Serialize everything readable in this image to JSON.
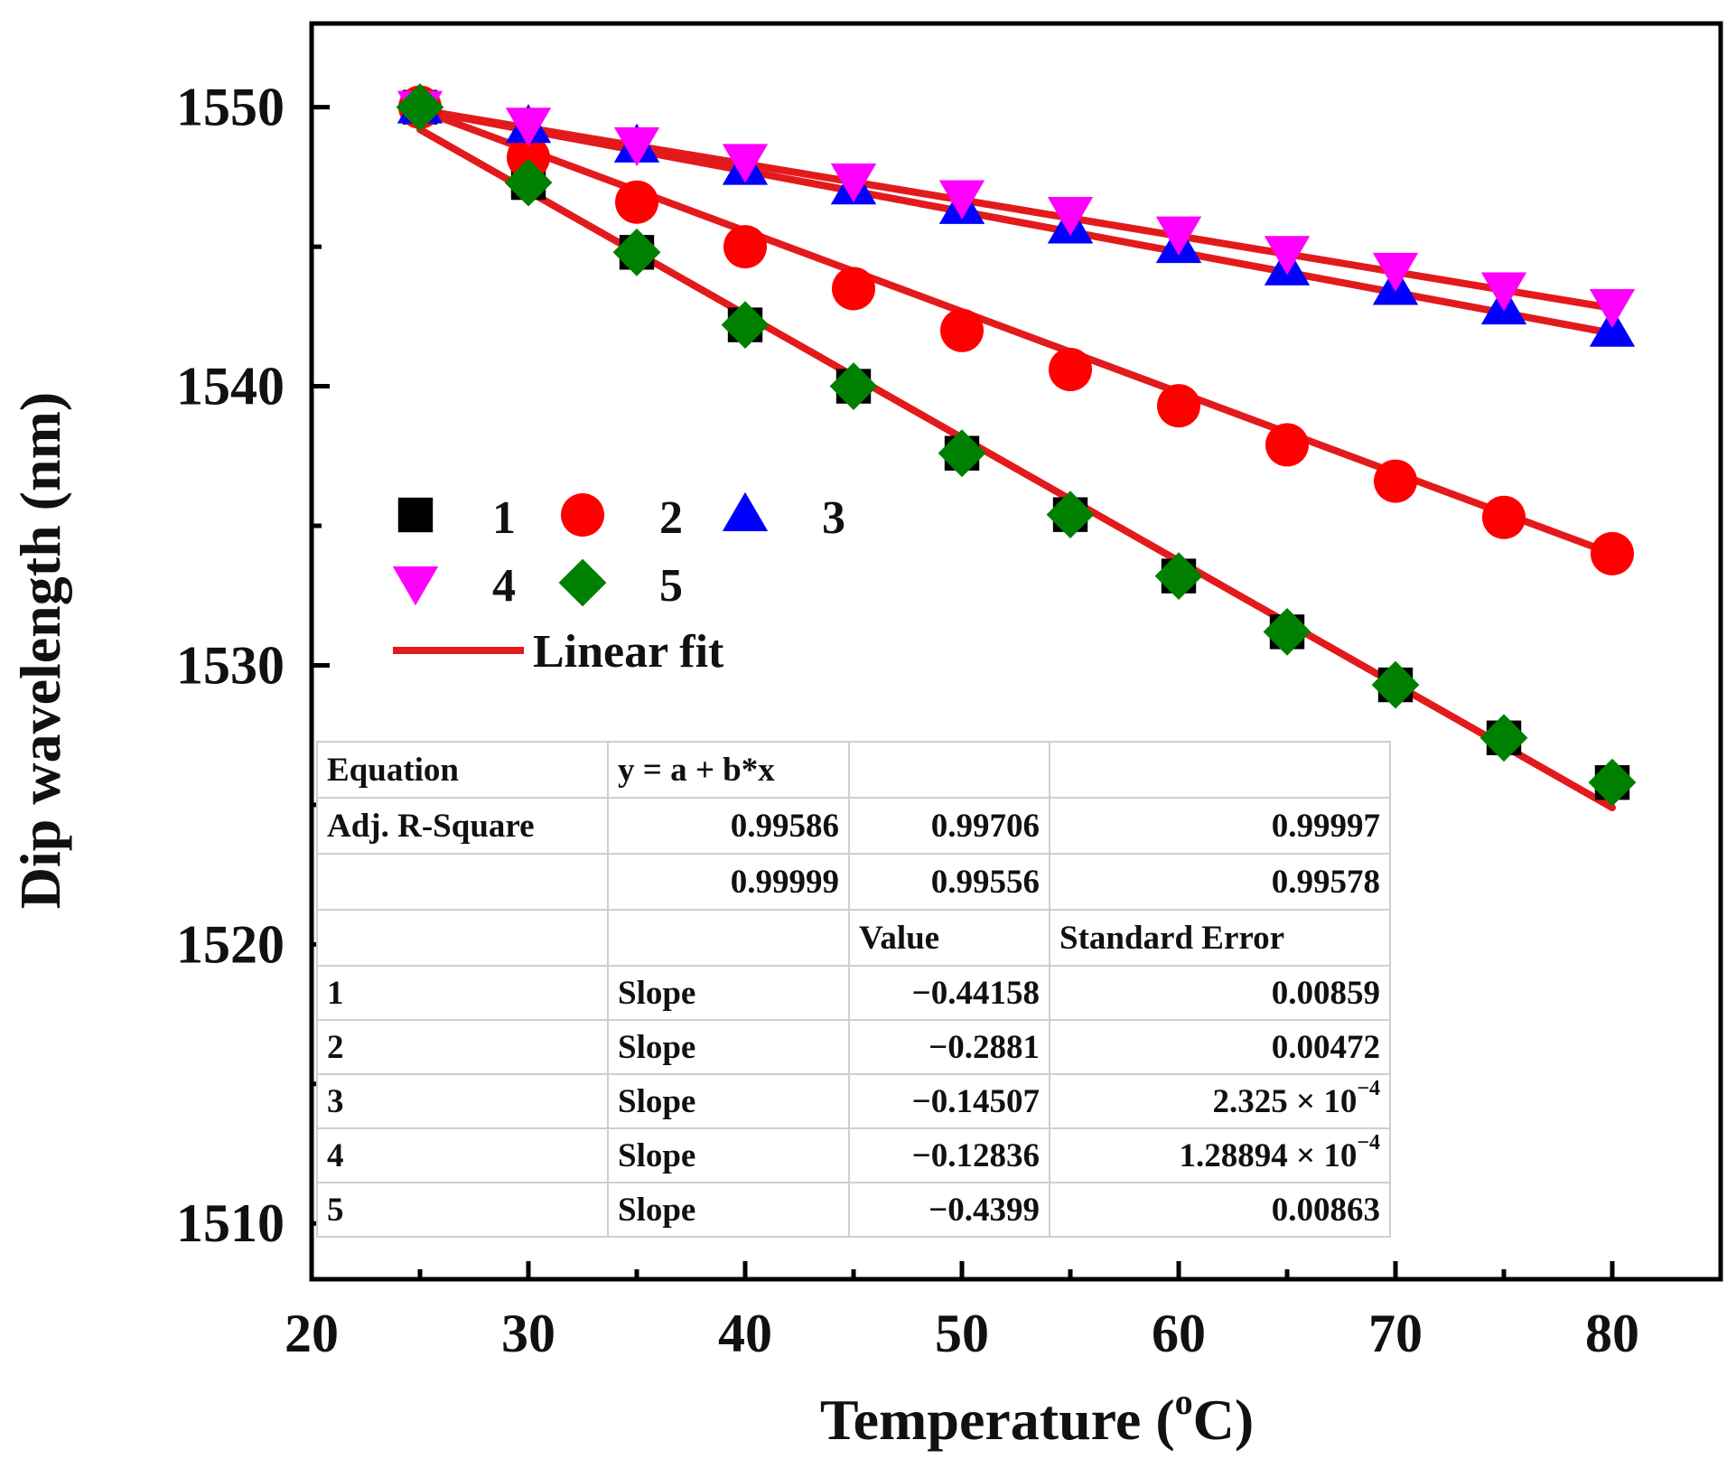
{
  "chart_data": {
    "type": "scatter",
    "xlabel": "Temperature (°C)",
    "xlabel_parts": {
      "prefix": "Temperature (",
      "degree": "o",
      "suffix": "C)"
    },
    "ylabel": "Dip wavelength (nm)",
    "xlim": [
      20,
      85
    ],
    "ylim": [
      1508,
      1553
    ],
    "xticks": [
      20,
      30,
      40,
      50,
      60,
      70,
      80
    ],
    "yticks": [
      1510,
      1520,
      1530,
      1540,
      1550
    ],
    "x": [
      25,
      30,
      35,
      40,
      45,
      50,
      55,
      60,
      65,
      70,
      75,
      80
    ],
    "series": [
      {
        "name": "1",
        "marker": "square",
        "color": "#000000",
        "values": [
          1550.0,
          1547.3,
          1544.8,
          1542.2,
          1540.0,
          1537.6,
          1535.4,
          1533.2,
          1531.2,
          1529.3,
          1527.4,
          1525.8
        ]
      },
      {
        "name": "2",
        "marker": "circle",
        "color": "#ff0000",
        "values": [
          1550.0,
          1548.2,
          1546.6,
          1545.0,
          1543.5,
          1542.0,
          1540.6,
          1539.3,
          1537.9,
          1536.6,
          1535.3,
          1534.0
        ]
      },
      {
        "name": "3",
        "marker": "triangle-up",
        "color": "#0000ff",
        "values": [
          1550.0,
          1549.3,
          1548.6,
          1547.8,
          1547.1,
          1546.4,
          1545.7,
          1545.0,
          1544.2,
          1543.5,
          1542.8,
          1542.0
        ]
      },
      {
        "name": "4",
        "marker": "triangle-down",
        "color": "#ff00ff",
        "values": [
          1550.0,
          1549.4,
          1548.7,
          1548.1,
          1547.4,
          1546.8,
          1546.2,
          1545.5,
          1544.8,
          1544.2,
          1543.5,
          1542.9
        ]
      },
      {
        "name": "5",
        "marker": "diamond",
        "color": "#008000",
        "values": [
          1550.0,
          1547.3,
          1544.8,
          1542.2,
          1540.0,
          1537.6,
          1535.4,
          1533.2,
          1531.2,
          1529.3,
          1527.4,
          1525.8
        ]
      }
    ],
    "fits": [
      {
        "name": "fit-1-5",
        "x": [
          25,
          80
        ],
        "y": [
          1549.2,
          1524.9
        ]
      },
      {
        "name": "fit-2",
        "x": [
          25,
          80
        ],
        "y": [
          1549.9,
          1534.0
        ]
      },
      {
        "name": "fit-3",
        "x": [
          25,
          80
        ],
        "y": [
          1549.9,
          1541.9
        ]
      },
      {
        "name": "fit-4",
        "x": [
          25,
          80
        ],
        "y": [
          1549.9,
          1542.8
        ]
      }
    ],
    "fit_color": "#e31a1c",
    "legend": {
      "placement": "upper-left",
      "fit_label": "Linear fit"
    },
    "fit_table": {
      "equation_label": "Equation",
      "equation": "y = a + b*x",
      "adj_r_label": "Adj. R-Square",
      "adj_r_row1": [
        "0.99586",
        "0.99706",
        "0.99997"
      ],
      "adj_r_row2": [
        "0.99999",
        "0.99556",
        "0.99578"
      ],
      "header_value": "Value",
      "header_se": "Standard Error",
      "rows": [
        {
          "id": "1",
          "param": "Slope",
          "value": "−0.44158",
          "se_mantissa": "0.00859",
          "se_times": "",
          "se_base": "",
          "se_exp": ""
        },
        {
          "id": "2",
          "param": "Slope",
          "value": "−0.2881",
          "se_mantissa": "0.00472",
          "se_times": "",
          "se_base": "",
          "se_exp": ""
        },
        {
          "id": "3",
          "param": "Slope",
          "value": "−0.14507",
          "se_mantissa": "2.325",
          "se_times": "×",
          "se_base": "10",
          "se_exp": "−4"
        },
        {
          "id": "4",
          "param": "Slope",
          "value": "−0.12836",
          "se_mantissa": "1.28894",
          "se_times": "×",
          "se_base": "10",
          "se_exp": "−4"
        },
        {
          "id": "5",
          "param": "Slope",
          "value": "−0.4399",
          "se_mantissa": "0.00863",
          "se_times": "",
          "se_base": "",
          "se_exp": ""
        }
      ]
    }
  }
}
